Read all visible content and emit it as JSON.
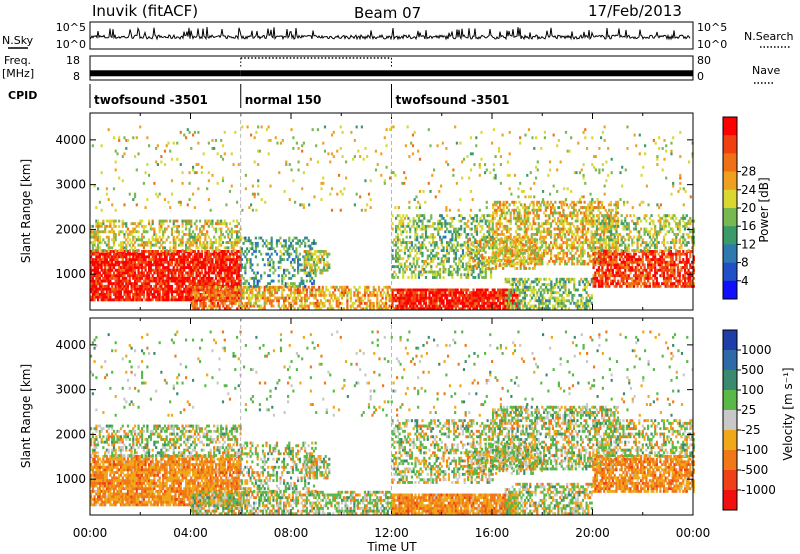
{
  "header": {
    "station": "Inuvik (fitACF)",
    "beam": "Beam 07",
    "date": "17/Feb/2013"
  },
  "left_labels": {
    "nsky": "N.Sky",
    "freq": "Freq.",
    "freq_unit": "[MHz]",
    "cpid": "CPID"
  },
  "right_labels": {
    "nsearch": "N.Search",
    "nave": "Nave"
  },
  "chart_data": [
    {
      "type": "line",
      "name": "noise-panel",
      "y_ticks_left": [
        "10^5",
        "10^0"
      ],
      "y_ticks_right": [
        "10^5",
        "10^0"
      ]
    },
    {
      "type": "line",
      "name": "freq-panel",
      "y_ticks_left": [
        "18",
        "8"
      ],
      "y_ticks_right": [
        "80",
        "0"
      ],
      "segments": [
        {
          "start_h": 0,
          "end_h": 6,
          "freq_mhz": 10.8,
          "nave_solid": true
        },
        {
          "start_h": 6,
          "end_h": 12,
          "freq_mhz": 10.8,
          "nave_solid": false
        },
        {
          "start_h": 12,
          "end_h": 24,
          "freq_mhz": 10.8,
          "nave_solid": true
        }
      ]
    },
    {
      "type": "table",
      "name": "cpid-panel",
      "modes": [
        {
          "label": "twofsound -3501",
          "start_h": 0,
          "end_h": 6
        },
        {
          "label": "normal 150",
          "start_h": 6,
          "end_h": 12
        },
        {
          "label": "twofsound -3501",
          "start_h": 12,
          "end_h": 24
        }
      ]
    },
    {
      "type": "heatmap",
      "name": "power-panel",
      "ylabel": "Slant Range [km]",
      "yticks": [
        "1000",
        "2000",
        "3000",
        "4000"
      ],
      "ylim": [
        200,
        4600
      ],
      "colorbar_label": "Power [dB]",
      "colorbar_ticks": [
        "4",
        "8",
        "12",
        "16",
        "20",
        "24",
        "28"
      ],
      "colors": [
        "#1010ff",
        "#2050c8",
        "#2e7ab0",
        "#3a9a6a",
        "#78b850",
        "#d8d830",
        "#f0a020",
        "#f07018",
        "#f04010",
        "#ff0000"
      ]
    },
    {
      "type": "heatmap",
      "name": "velocity-panel",
      "ylabel": "Slant Range [km]",
      "yticks": [
        "1000",
        "2000",
        "3000",
        "4000"
      ],
      "ylim": [
        200,
        4600
      ],
      "xlabel": "Time UT",
      "xticks": [
        "00:00",
        "04:00",
        "08:00",
        "12:00",
        "16:00",
        "20:00",
        "00:00"
      ],
      "colorbar_label": "Velocity [m s⁻¹]",
      "colorbar_ticks": [
        "1000",
        "500",
        "100",
        "25",
        "-25",
        "-100",
        "-500",
        "-1000"
      ],
      "colors": [
        "#1e3ea8",
        "#2e6aa8",
        "#3a8a70",
        "#58b848",
        "#c8c8c8",
        "#f0a818",
        "#f07818",
        "#f04018",
        "#f01010"
      ]
    }
  ]
}
